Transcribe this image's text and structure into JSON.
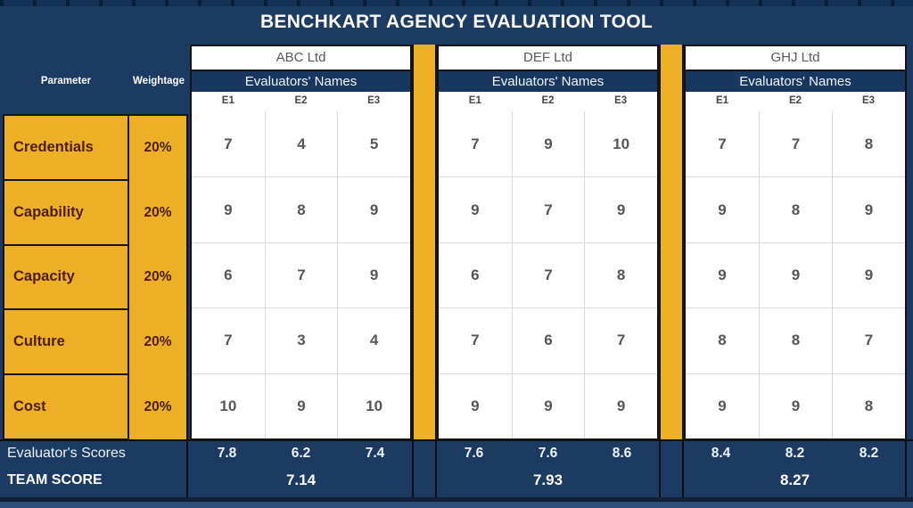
{
  "title": "BENCHKART AGENCY EVALUATION TOOL",
  "left_panel": {
    "parameter_header": "Parameter",
    "weightage_header": "Weightage",
    "evaluator_scores_label": "Evaluator's Scores",
    "team_score_label": "TEAM SCORE",
    "parameters": [
      {
        "name": "Credentials",
        "weightage": "20%"
      },
      {
        "name": "Capability",
        "weightage": "20%"
      },
      {
        "name": "Capacity",
        "weightage": "20%"
      },
      {
        "name": "Culture",
        "weightage": "20%"
      },
      {
        "name": "Cost",
        "weightage": "20%"
      }
    ]
  },
  "companies": [
    {
      "name": "ABC Ltd",
      "evaluators_label": "Evaluators' Names",
      "evaluators": [
        "E1",
        "E2",
        "E3"
      ],
      "scores": [
        [
          "7",
          "4",
          "5"
        ],
        [
          "9",
          "8",
          "9"
        ],
        [
          "6",
          "7",
          "9"
        ],
        [
          "7",
          "3",
          "4"
        ],
        [
          "10",
          "9",
          "10"
        ]
      ],
      "evaluator_scores": [
        "7.8",
        "6.2",
        "7.4"
      ],
      "team_score": "7.14"
    },
    {
      "name": "DEF Ltd",
      "evaluators_label": "Evaluators' Names",
      "evaluators": [
        "E1",
        "E2",
        "E3"
      ],
      "scores": [
        [
          "7",
          "9",
          "10"
        ],
        [
          "9",
          "7",
          "9"
        ],
        [
          "6",
          "7",
          "8"
        ],
        [
          "7",
          "6",
          "7"
        ],
        [
          "9",
          "9",
          "9"
        ]
      ],
      "evaluator_scores": [
        "7.6",
        "7.6",
        "8.6"
      ],
      "team_score": "7.93"
    },
    {
      "name": "GHJ Ltd",
      "evaluators_label": "Evaluators' Names",
      "evaluators": [
        "E1",
        "E2",
        "E3"
      ],
      "scores": [
        [
          "7",
          "7",
          "8"
        ],
        [
          "9",
          "8",
          "9"
        ],
        [
          "9",
          "9",
          "9"
        ],
        [
          "8",
          "8",
          "7"
        ],
        [
          "9",
          "9",
          "8"
        ]
      ],
      "evaluator_scores": [
        "8.4",
        "8.2",
        "8.2"
      ],
      "team_score": "8.27"
    }
  ],
  "colors": {
    "navy_background": "#1b3b63",
    "band_navy": "#173760",
    "gold": "#ecaf26",
    "black_border": "#141414",
    "grid_line": "#d9d9d9",
    "score_text": "#565656",
    "parameter_text": "#4e1e07",
    "company_text": "#595959"
  }
}
